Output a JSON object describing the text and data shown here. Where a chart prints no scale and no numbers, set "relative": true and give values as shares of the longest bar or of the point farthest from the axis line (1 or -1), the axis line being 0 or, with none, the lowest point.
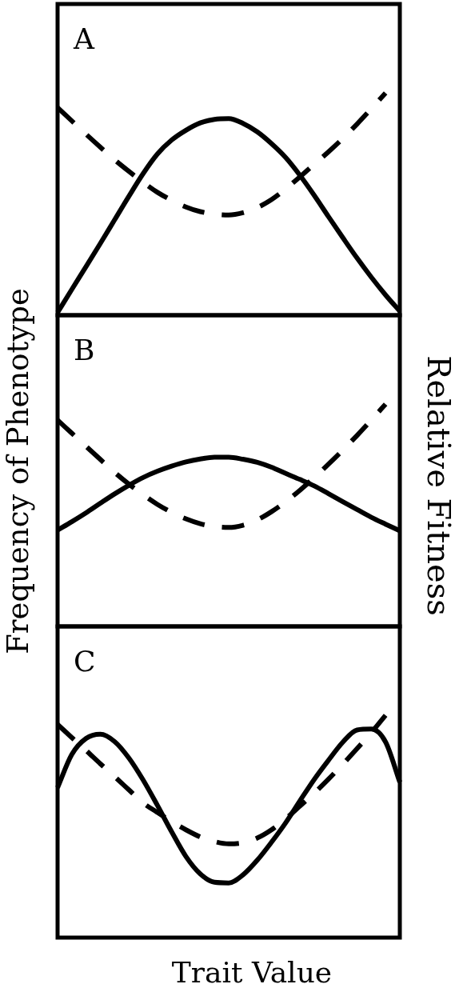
{
  "chart_data": [
    {
      "type": "line",
      "relative": true,
      "annotations": [
        "A"
      ],
      "categories": [
        null,
        null,
        null,
        null,
        null,
        null,
        null,
        null,
        null,
        null,
        null,
        null,
        null,
        null,
        null,
        null,
        null,
        null,
        null,
        null,
        null,
        null,
        null,
        null,
        null
      ],
      "series": [
        {
          "color": "#000000",
          "line_style": "solid",
          "values": [
            0.012,
            0.116,
            0.219,
            0.323,
            0.429,
            0.535,
            0.637,
            0.725,
            0.788,
            0.832,
            0.865,
            0.881,
            0.884,
            0.863,
            0.825,
            0.772,
            0.709,
            0.629,
            0.539,
            0.443,
            0.349,
            0.257,
            0.171,
            0.091,
            0.018
          ]
        },
        {
          "color": "#000000",
          "line_style": "dashed",
          "values": [
            0.934,
            0.874,
            0.814,
            0.756,
            0.699,
            0.647,
            0.598,
            0.553,
            0.517,
            0.487,
            0.466,
            0.455,
            0.451,
            0.461,
            0.484,
            0.52,
            0.568,
            0.623,
            0.679,
            0.735,
            0.795,
            0.86,
            0.929,
            1,
            null
          ]
        }
      ]
    },
    {
      "type": "line",
      "relative": true,
      "annotations": [
        "B"
      ],
      "ylabel": "Frequency of Phenotype",
      "y2label": "Relative Fitness",
      "categories": [
        null,
        null,
        null,
        null,
        null,
        null,
        null,
        null,
        null,
        null,
        null,
        null,
        null,
        null,
        null,
        null,
        null,
        null,
        null,
        null,
        null,
        null,
        null,
        null,
        null
      ],
      "series": [
        {
          "color": "#000000",
          "line_style": "solid",
          "values": [
            0.433,
            0.471,
            0.511,
            0.554,
            0.596,
            0.635,
            0.67,
            0.698,
            0.721,
            0.74,
            0.753,
            0.761,
            0.761,
            0.752,
            0.738,
            0.716,
            0.688,
            0.661,
            0.632,
            0.597,
            0.561,
            0.526,
            0.491,
            0.46,
            0.43
          ]
        },
        {
          "color": "#000000",
          "line_style": "dashed",
          "values": [
            0.928,
            0.869,
            0.81,
            0.751,
            0.693,
            0.64,
            0.592,
            0.549,
            0.513,
            0.484,
            0.462,
            0.449,
            0.445,
            0.455,
            0.479,
            0.516,
            0.561,
            0.613,
            0.67,
            0.73,
            0.793,
            0.859,
            0.928,
            1,
            null
          ]
        }
      ]
    },
    {
      "type": "line",
      "relative": true,
      "annotations": [
        "C"
      ],
      "xlabel": "Trait Value",
      "categories": [
        null,
        null,
        null,
        null,
        null,
        null,
        null,
        null,
        null,
        null,
        null,
        null,
        null,
        null,
        null,
        null,
        null,
        null,
        null,
        null,
        null,
        null,
        null,
        null,
        null
      ],
      "series": [
        {
          "color": "#000000",
          "line_style": "solid",
          "values": [
            0.675,
            0.824,
            0.896,
            0.915,
            0.882,
            0.808,
            0.709,
            0.595,
            0.476,
            0.365,
            0.287,
            0.249,
            0.246,
            0.282,
            0.348,
            0.429,
            0.517,
            0.616,
            0.712,
            0.798,
            0.879,
            0.934,
            0.938,
            0.88,
            0.699
          ]
        },
        {
          "color": "#000000",
          "line_style": "dashed",
          "values": [
            0.959,
            0.9,
            0.842,
            0.782,
            0.724,
            0.665,
            0.606,
            0.563,
            0.522,
            0.485,
            0.453,
            0.432,
            0.422,
            0.427,
            0.448,
            0.485,
            0.535,
            0.592,
            0.65,
            0.713,
            0.78,
            0.85,
            0.922,
            1,
            null
          ]
        }
      ]
    }
  ]
}
